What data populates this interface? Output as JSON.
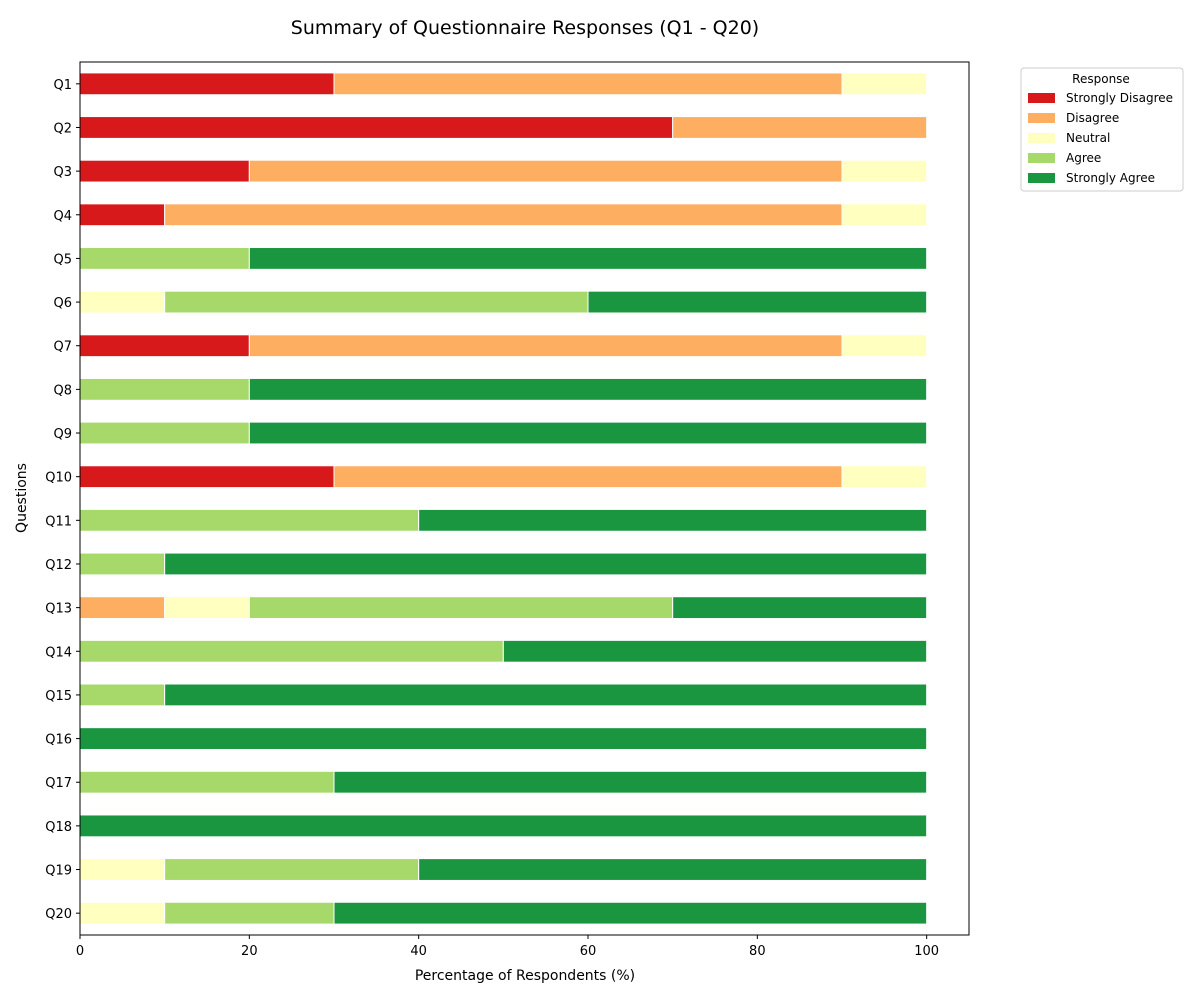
{
  "chart_data": {
    "type": "bar",
    "orientation": "horizontal",
    "stacked": true,
    "title": "Summary of Questionnaire Responses (Q1 - Q20)",
    "xlabel": "Percentage of Respondents (%)",
    "ylabel": "Questions",
    "xlim": [
      0,
      105
    ],
    "xticks": [
      0,
      20,
      40,
      60,
      80,
      100
    ],
    "grid": false,
    "legend": {
      "title": "Response",
      "placement": "outside-top-right"
    },
    "categories": [
      "Q1",
      "Q2",
      "Q3",
      "Q4",
      "Q5",
      "Q6",
      "Q7",
      "Q8",
      "Q9",
      "Q10",
      "Q11",
      "Q12",
      "Q13",
      "Q14",
      "Q15",
      "Q16",
      "Q17",
      "Q18",
      "Q19",
      "Q20"
    ],
    "series": [
      {
        "name": "Strongly Disagree",
        "color": "#d7191c",
        "values": [
          30,
          70,
          20,
          10,
          0,
          0,
          20,
          0,
          0,
          30,
          0,
          0,
          0,
          0,
          0,
          0,
          0,
          0,
          0,
          0
        ]
      },
      {
        "name": "Disagree",
        "color": "#fdae61",
        "values": [
          60,
          30,
          70,
          80,
          0,
          0,
          70,
          0,
          0,
          60,
          0,
          0,
          10,
          0,
          0,
          0,
          0,
          0,
          0,
          0
        ]
      },
      {
        "name": "Neutral",
        "color": "#ffffbf",
        "values": [
          10,
          0,
          10,
          10,
          0,
          10,
          10,
          0,
          0,
          10,
          0,
          0,
          10,
          0,
          0,
          0,
          0,
          0,
          10,
          10
        ]
      },
      {
        "name": "Agree",
        "color": "#a6d96a",
        "values": [
          0,
          0,
          0,
          0,
          20,
          50,
          0,
          20,
          20,
          0,
          40,
          10,
          50,
          50,
          10,
          0,
          30,
          0,
          30,
          20
        ]
      },
      {
        "name": "Strongly Agree",
        "color": "#1a9641",
        "values": [
          0,
          0,
          0,
          0,
          80,
          40,
          0,
          80,
          80,
          0,
          60,
          90,
          30,
          50,
          90,
          100,
          70,
          100,
          60,
          70
        ]
      }
    ]
  }
}
